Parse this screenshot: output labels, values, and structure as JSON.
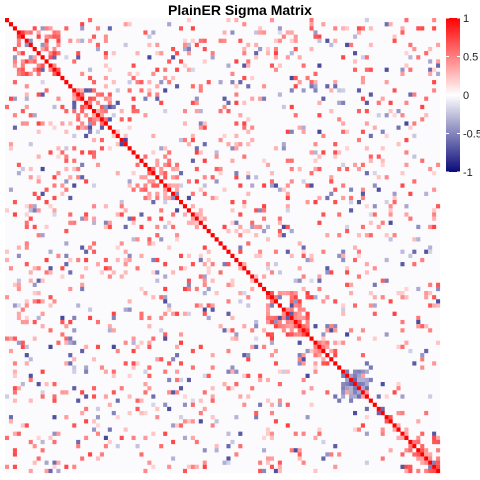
{
  "chart_data": {
    "type": "heatmap",
    "title": "PlainER Sigma Matrix",
    "xlabel": "",
    "ylabel": "",
    "color_scale": {
      "min": -1,
      "max": 1,
      "low_color": "#0a0a7a",
      "mid_color": "#ffffff",
      "high_color": "#ff0000",
      "ticks": [
        {
          "value": 1,
          "label": "1"
        },
        {
          "value": 0.5,
          "label": "0.5"
        },
        {
          "value": 0,
          "label": "0"
        },
        {
          "value": -0.5,
          "label": "-0.5"
        },
        {
          "value": -1,
          "label": "-1"
        }
      ]
    },
    "matrix_size": 110,
    "diagonal_value": 1,
    "blocks": [
      {
        "start": 2,
        "end": 14,
        "mean": 0.6,
        "density": 0.55
      },
      {
        "start": 17,
        "end": 27,
        "mean": 0.55,
        "density": 0.55
      },
      {
        "start": 34,
        "end": 44,
        "mean": 0.5,
        "density": 0.5
      },
      {
        "start": 46,
        "end": 52,
        "mean": 0.3,
        "density": 0.4
      },
      {
        "start": 66,
        "end": 77,
        "mean": 0.6,
        "density": 0.6
      },
      {
        "start": 78,
        "end": 84,
        "mean": 0.55,
        "density": 0.55
      },
      {
        "start": 85,
        "end": 92,
        "mean": -0.5,
        "density": 0.75
      },
      {
        "start": 100,
        "end": 110,
        "mean": 0.55,
        "density": 0.55
      }
    ],
    "background_density": 0.12
  },
  "colorbar_icon": "gradient-colorbar"
}
